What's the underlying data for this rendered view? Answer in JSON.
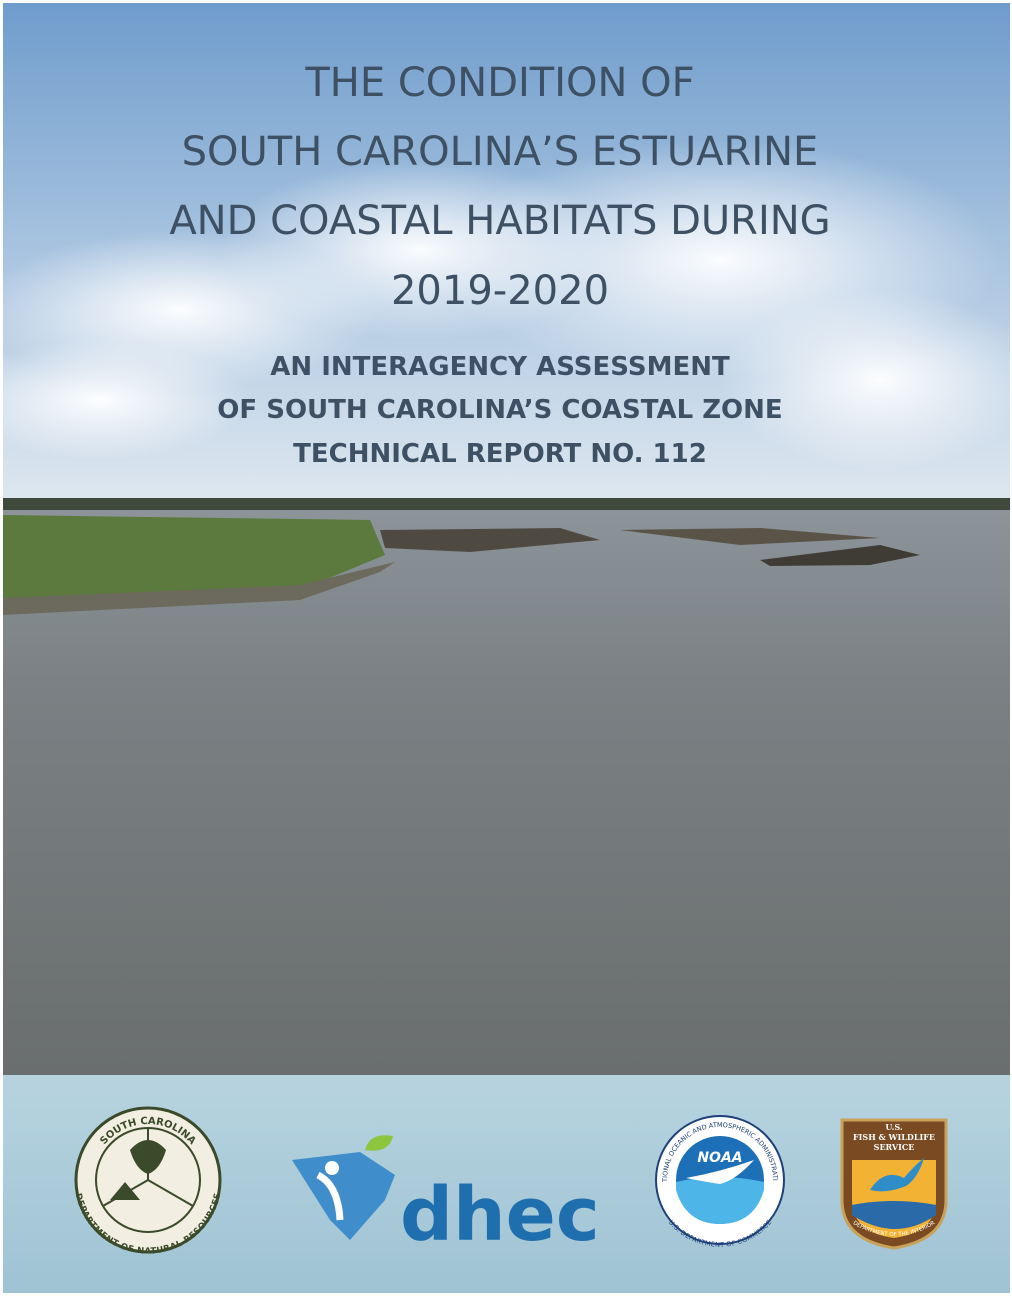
{
  "cover": {
    "title_lines": [
      "THE CONDITION OF",
      "SOUTH CAROLINA’S ESTUARINE",
      "AND COASTAL HABITATS DURING",
      "2019-2020"
    ],
    "subtitle_lines": [
      "AN INTERAGENCY ASSESSMENT",
      "OF SOUTH CAROLINA’S COASTAL ZONE",
      "TECHNICAL REPORT NO. 112"
    ]
  },
  "logos": {
    "scdnr": {
      "top": "SOUTH CAROLINA",
      "bottom": "DEPARTMENT OF NATURAL RESOURCES"
    },
    "dhec": {
      "label": "dhec"
    },
    "noaa": {
      "label": "NOAA",
      "ring_top": "NATIONAL OCEANIC AND ATMOSPHERIC ADMINISTRATION",
      "ring_bottom": "U.S. DEPARTMENT OF COMMERCE"
    },
    "usfws": {
      "top_lines": [
        "U.S.",
        "FISH & WILDLIFE",
        "SERVICE"
      ],
      "bottom": "DEPARTMENT OF THE INTERIOR"
    }
  }
}
